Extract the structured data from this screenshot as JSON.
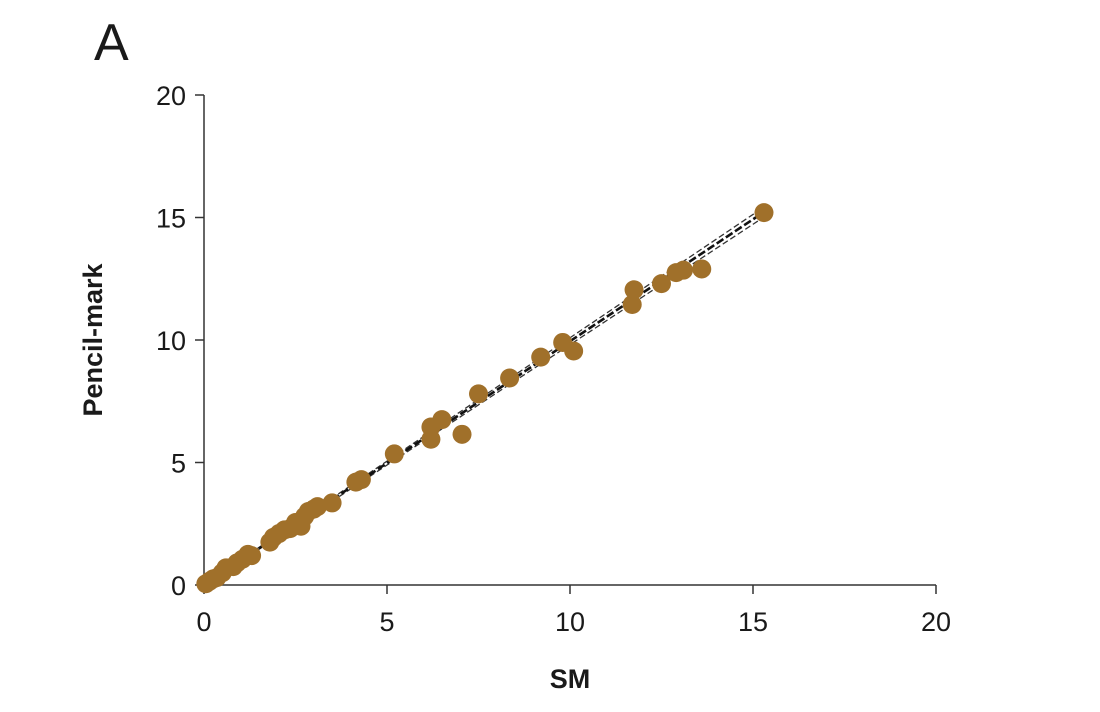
{
  "panel_label": "A",
  "colors": {
    "point": "#A0702A",
    "fit_line": "#111111",
    "ci_line": "#333333",
    "axis": "#333333"
  },
  "chart_data": {
    "type": "scatter",
    "xlabel": "SM",
    "ylabel": "Pencil-mark",
    "xlim": [
      0,
      20
    ],
    "ylim": [
      0,
      20
    ],
    "xticks": [
      0,
      5,
      10,
      15,
      20
    ],
    "yticks": [
      0,
      5,
      10,
      15,
      20
    ],
    "grid": false,
    "legend": "none",
    "fit": {
      "type": "linear",
      "slope": 0.995,
      "intercept": 0.0,
      "x_range": [
        0,
        15.3
      ],
      "confidence_band": true
    },
    "points": [
      {
        "x": 0.05,
        "y": 0.05
      },
      {
        "x": 0.15,
        "y": 0.15
      },
      {
        "x": 0.25,
        "y": 0.25
      },
      {
        "x": 0.35,
        "y": 0.3
      },
      {
        "x": 0.5,
        "y": 0.5
      },
      {
        "x": 0.6,
        "y": 0.7
      },
      {
        "x": 0.8,
        "y": 0.75
      },
      {
        "x": 0.9,
        "y": 0.9
      },
      {
        "x": 1.05,
        "y": 1.05
      },
      {
        "x": 1.2,
        "y": 1.25
      },
      {
        "x": 1.3,
        "y": 1.2
      },
      {
        "x": 1.8,
        "y": 1.75
      },
      {
        "x": 1.9,
        "y": 1.95
      },
      {
        "x": 2.05,
        "y": 2.1
      },
      {
        "x": 2.2,
        "y": 2.25
      },
      {
        "x": 2.35,
        "y": 2.3
      },
      {
        "x": 2.5,
        "y": 2.55
      },
      {
        "x": 2.65,
        "y": 2.4
      },
      {
        "x": 2.75,
        "y": 2.8
      },
      {
        "x": 2.85,
        "y": 3.0
      },
      {
        "x": 3.0,
        "y": 3.1
      },
      {
        "x": 3.1,
        "y": 3.2
      },
      {
        "x": 3.5,
        "y": 3.35
      },
      {
        "x": 4.15,
        "y": 4.2
      },
      {
        "x": 4.3,
        "y": 4.3
      },
      {
        "x": 5.2,
        "y": 5.35
      },
      {
        "x": 6.2,
        "y": 5.95
      },
      {
        "x": 6.2,
        "y": 6.45
      },
      {
        "x": 6.5,
        "y": 6.75
      },
      {
        "x": 7.05,
        "y": 6.15
      },
      {
        "x": 7.5,
        "y": 7.8
      },
      {
        "x": 8.35,
        "y": 8.45
      },
      {
        "x": 9.2,
        "y": 9.3
      },
      {
        "x": 9.8,
        "y": 9.9
      },
      {
        "x": 10.1,
        "y": 9.55
      },
      {
        "x": 11.7,
        "y": 11.45
      },
      {
        "x": 11.75,
        "y": 12.05
      },
      {
        "x": 12.5,
        "y": 12.3
      },
      {
        "x": 12.9,
        "y": 12.75
      },
      {
        "x": 13.1,
        "y": 12.85
      },
      {
        "x": 13.6,
        "y": 12.9
      },
      {
        "x": 15.3,
        "y": 15.2
      }
    ]
  }
}
